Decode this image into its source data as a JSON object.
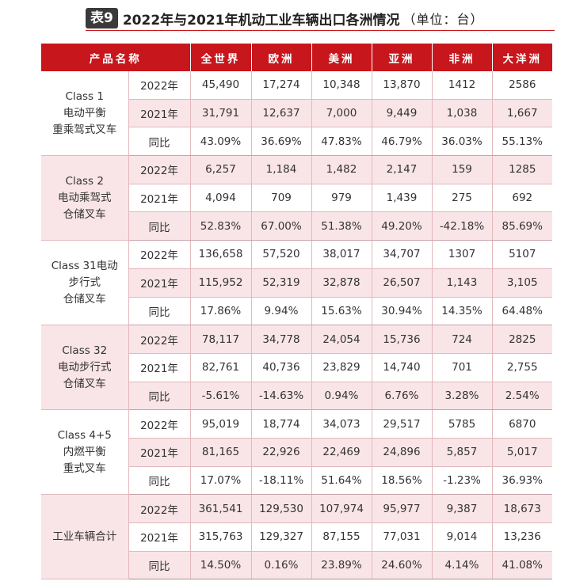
{
  "title": {
    "badge": "表9",
    "text": "2022年与2021年机动工业车辆出口各洲情况",
    "unit": "（单位：台）"
  },
  "header": [
    "产品名称",
    "全世界",
    "欧洲",
    "美洲",
    "亚洲",
    "非洲",
    "大洋洲"
  ],
  "groups": [
    {
      "category": "Class 1\n电动平衡\n重乘驾式叉车",
      "rows": [
        {
          "label": "2022年",
          "values": [
            "45,490",
            "17,274",
            "10,348",
            "13,870",
            "1412",
            "2586"
          ]
        },
        {
          "label": "2021年",
          "values": [
            "31,791",
            "12,637",
            "7,000",
            "9,449",
            "1,038",
            "1,667"
          ]
        },
        {
          "label": "同比",
          "values": [
            "43.09%",
            "36.69%",
            "47.83%",
            "46.79%",
            "36.03%",
            "55.13%"
          ]
        }
      ]
    },
    {
      "category": "Class 2\n电动乘驾式\n仓储叉车",
      "rows": [
        {
          "label": "2022年",
          "values": [
            "6,257",
            "1,184",
            "1,482",
            "2,147",
            "159",
            "1285"
          ]
        },
        {
          "label": "2021年",
          "values": [
            "4,094",
            "709",
            "979",
            "1,439",
            "275",
            "692"
          ]
        },
        {
          "label": "同比",
          "values": [
            "52.83%",
            "67.00%",
            "51.38%",
            "49.20%",
            "-42.18%",
            "85.69%"
          ]
        }
      ]
    },
    {
      "category": "Class 31电动\n步行式\n仓储叉车",
      "rows": [
        {
          "label": "2022年",
          "values": [
            "136,658",
            "57,520",
            "38,017",
            "34,707",
            "1307",
            "5107"
          ]
        },
        {
          "label": "2021年",
          "values": [
            "115,952",
            "52,319",
            "32,878",
            "26,507",
            "1,143",
            "3,105"
          ]
        },
        {
          "label": "同比",
          "values": [
            "17.86%",
            "9.94%",
            "15.63%",
            "30.94%",
            "14.35%",
            "64.48%"
          ]
        }
      ]
    },
    {
      "category": "Class 32\n电动步行式\n仓储叉车",
      "rows": [
        {
          "label": "2022年",
          "values": [
            "78,117",
            "34,778",
            "24,054",
            "15,736",
            "724",
            "2825"
          ]
        },
        {
          "label": "2021年",
          "values": [
            "82,761",
            "40,736",
            "23,829",
            "14,740",
            "701",
            "2,755"
          ]
        },
        {
          "label": "同比",
          "values": [
            "-5.61%",
            "-14.63%",
            "0.94%",
            "6.76%",
            "3.28%",
            "2.54%"
          ]
        }
      ]
    },
    {
      "category": "Class 4+5\n内燃平衡\n重式叉车",
      "rows": [
        {
          "label": "2022年",
          "values": [
            "95,019",
            "18,774",
            "34,073",
            "29,517",
            "5785",
            "6870"
          ]
        },
        {
          "label": "2021年",
          "values": [
            "81,165",
            "22,926",
            "22,469",
            "24,896",
            "5,857",
            "5,017"
          ]
        },
        {
          "label": "同比",
          "values": [
            "17.07%",
            "-18.11%",
            "51.64%",
            "18.56%",
            "-1.23%",
            "36.93%"
          ]
        }
      ]
    },
    {
      "category": "工业车辆合计",
      "rows": [
        {
          "label": "2022年",
          "values": [
            "361,541",
            "129,530",
            "107,974",
            "95,977",
            "9,387",
            "18,673"
          ]
        },
        {
          "label": "2021年",
          "values": [
            "315,763",
            "129,327",
            "87,155",
            "77,031",
            "9,014",
            "13,236"
          ]
        },
        {
          "label": "同比",
          "values": [
            "14.50%",
            "0.16%",
            "23.89%",
            "24.60%",
            "4.14%",
            "41.08%"
          ]
        }
      ]
    }
  ]
}
